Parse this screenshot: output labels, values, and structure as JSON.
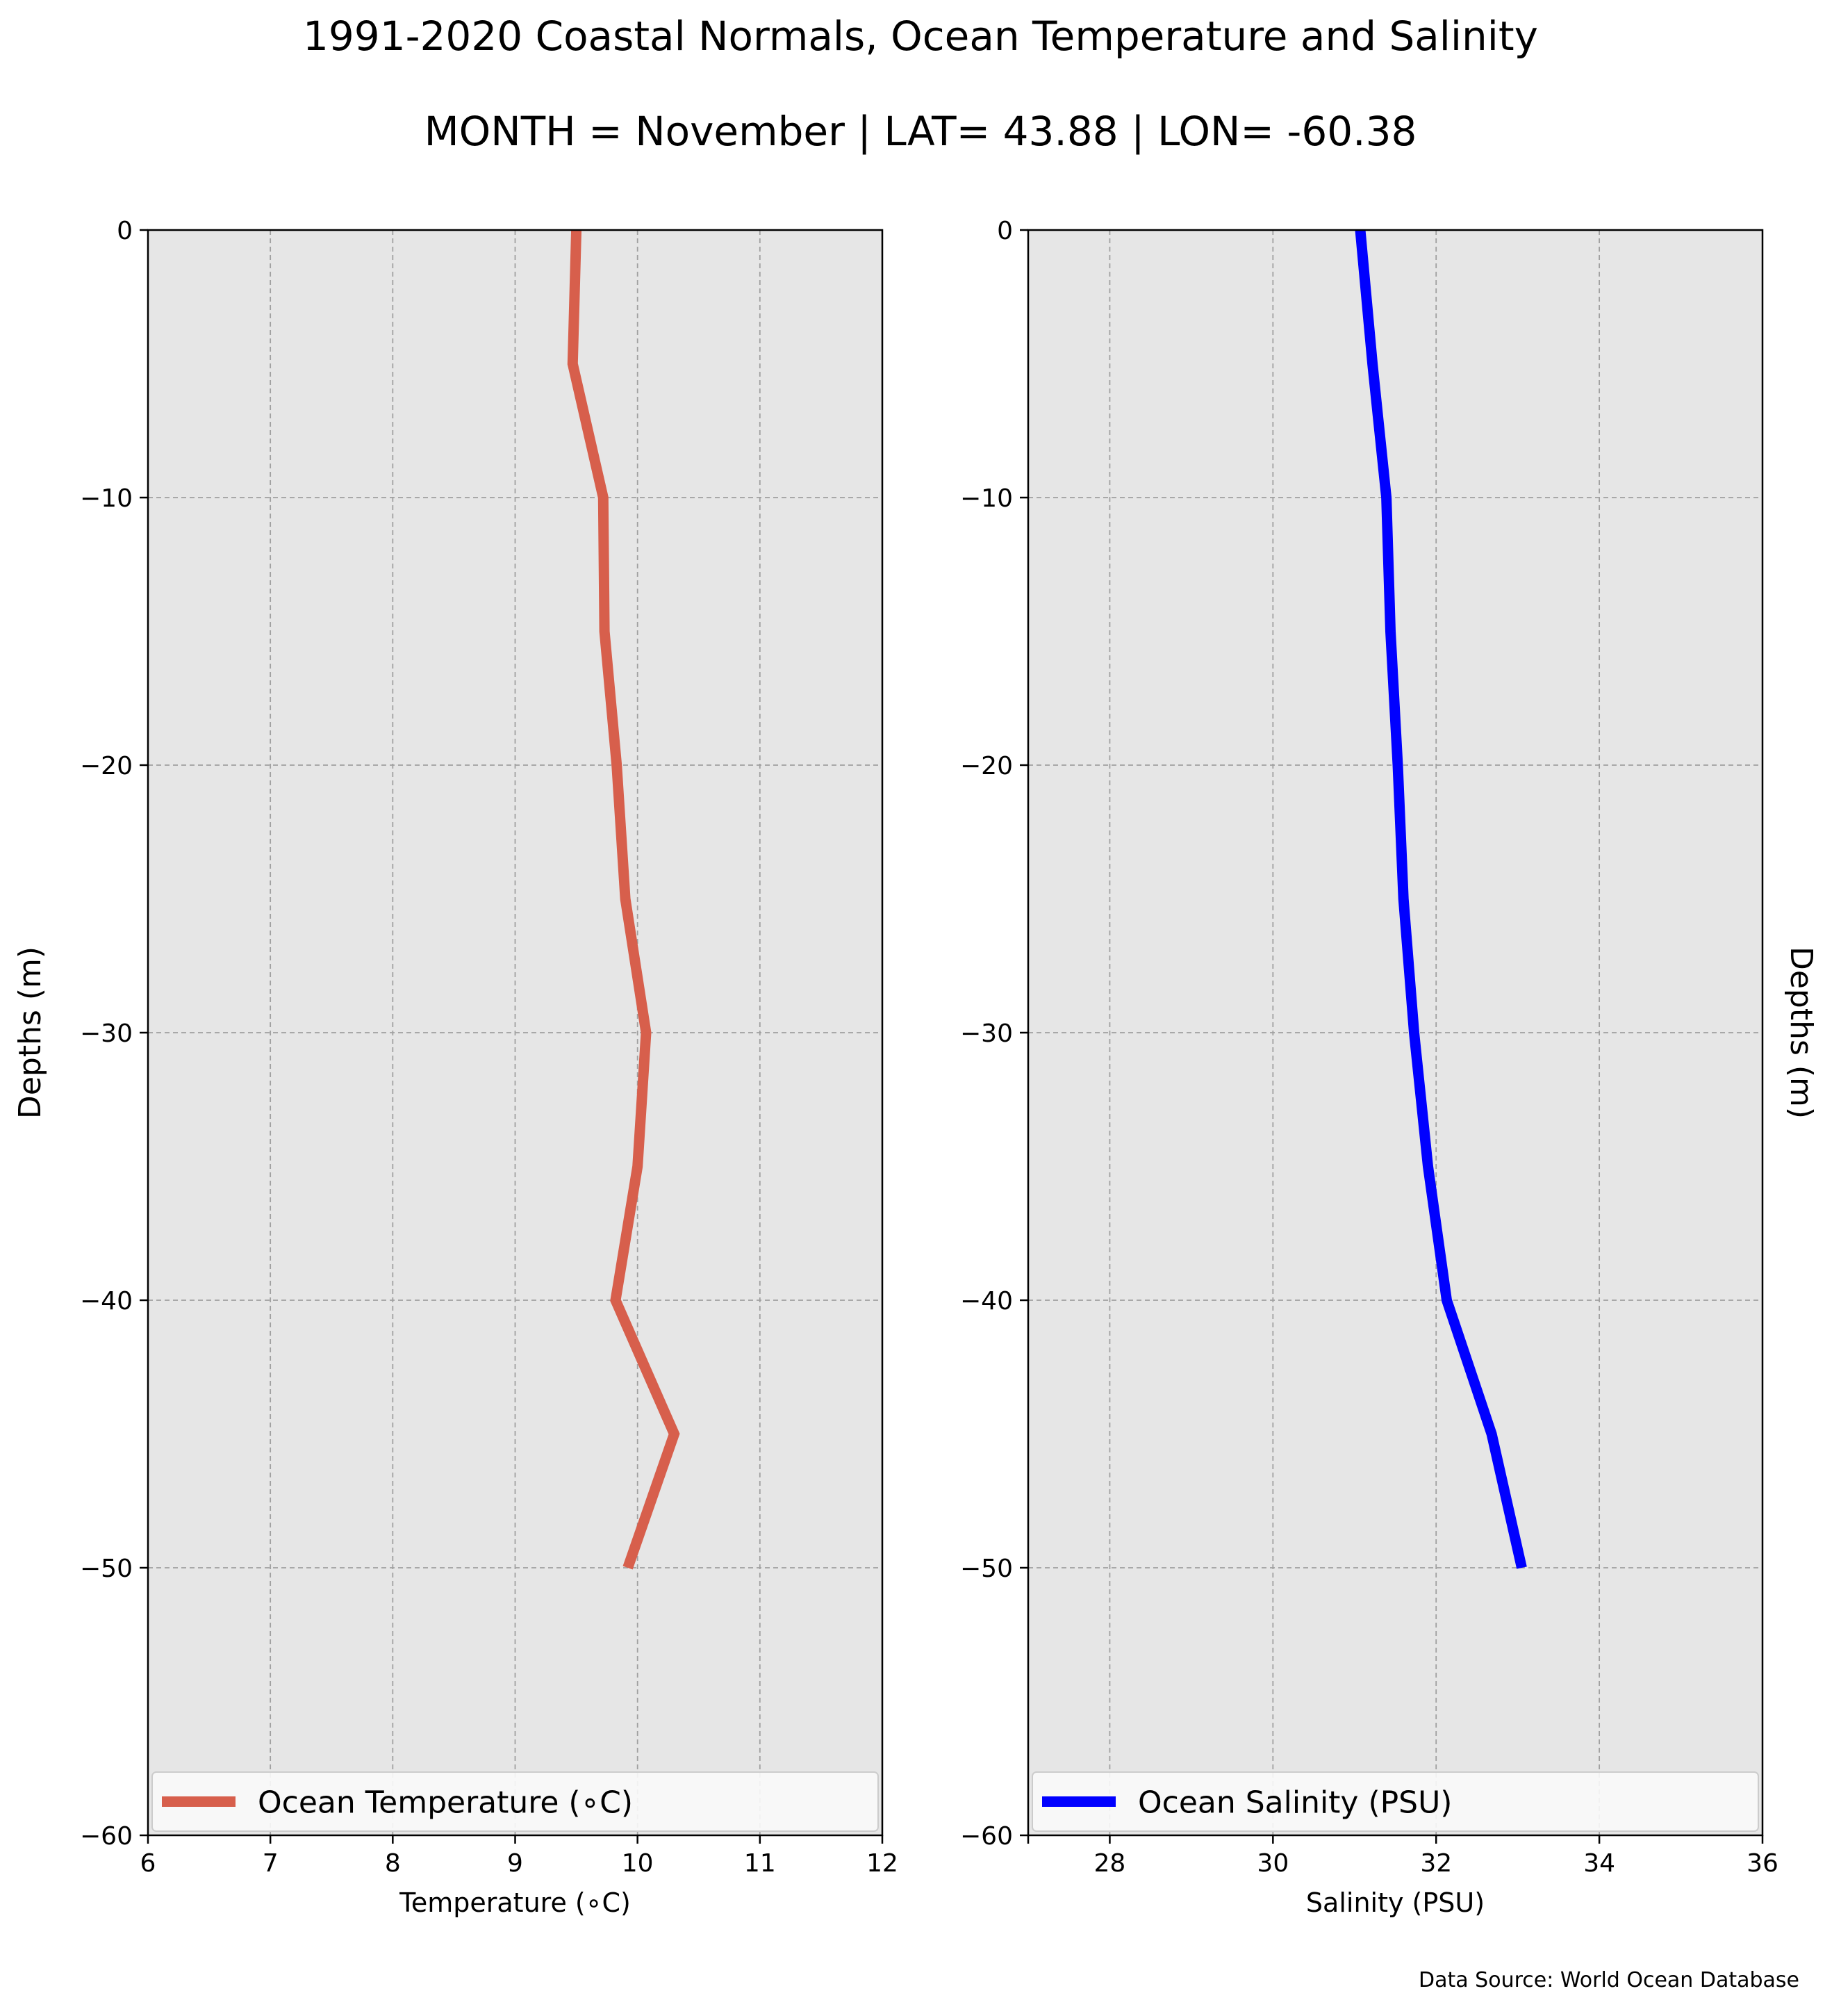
{
  "figure": {
    "title": "1991-2020 Coastal Normals, Ocean Temperature and Salinity",
    "subtitle": "MONTH = November | LAT= 43.88 | LON= -60.38",
    "source_note": "Data Source: World Ocean Database",
    "background_color": "#e6e6e6",
    "grid": true
  },
  "chart_data": [
    {
      "type": "line",
      "xlabel": "Temperature (∘C)",
      "ylabel": "Depths (m)",
      "ylabel_side": "left",
      "xlim": [
        6,
        12
      ],
      "ylim": [
        -60,
        0
      ],
      "xticks": [
        6,
        7,
        8,
        9,
        10,
        11,
        12
      ],
      "yticks": [
        0,
        -10,
        -20,
        -30,
        -40,
        -50,
        -60
      ],
      "legend_position": "lower center",
      "series": [
        {
          "name": "Ocean Temperature (∘C)",
          "color": "#d75f4c",
          "x": [
            9.5,
            9.47,
            9.72,
            9.73,
            9.83,
            9.9,
            10.07,
            10.0,
            9.82,
            10.3,
            9.92
          ],
          "y": [
            0,
            -5,
            -10,
            -15,
            -20,
            -25,
            -30,
            -35,
            -40,
            -45,
            -50
          ]
        }
      ]
    },
    {
      "type": "line",
      "xlabel": "Salinity (PSU)",
      "ylabel": "Depths (m)",
      "ylabel_side": "right",
      "xlim": [
        27,
        36
      ],
      "ylim": [
        -60,
        0
      ],
      "xticks": [
        28,
        30,
        32,
        34,
        36
      ],
      "yticks": [
        0,
        -10,
        -20,
        -30,
        -40,
        -50,
        -60
      ],
      "legend_position": "lower center",
      "series": [
        {
          "name": "Ocean Salinity (PSU)",
          "color": "#0000ff",
          "x": [
            31.07,
            31.22,
            31.39,
            31.44,
            31.53,
            31.6,
            31.73,
            31.9,
            32.13,
            32.68,
            33.05
          ],
          "y": [
            0,
            -5,
            -10,
            -15,
            -20,
            -25,
            -30,
            -35,
            -40,
            -45,
            -50
          ]
        }
      ]
    }
  ]
}
